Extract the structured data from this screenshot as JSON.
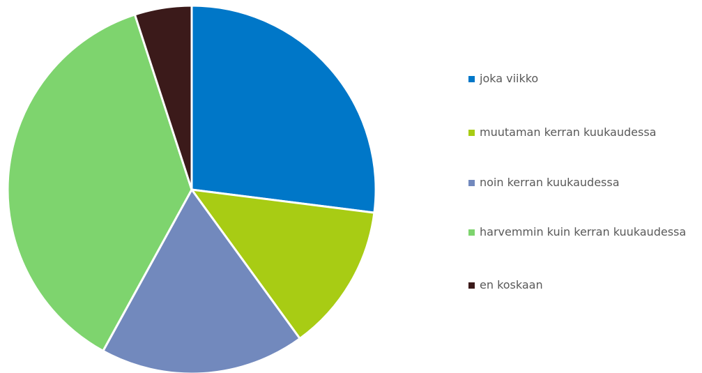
{
  "chart_data": {
    "type": "pie",
    "categories": [
      "joka viikko",
      "muutaman kerran kuukaudessa",
      "noin kerran kuukaudessa",
      "harvemmin kuin kerran kuukaudessa",
      "en koskaan"
    ],
    "values": [
      27,
      13,
      18,
      37,
      5
    ],
    "colors": [
      "#0077c8",
      "#a8cc14",
      "#7289bd",
      "#7ed46e",
      "#3b1a1a"
    ],
    "legend": "right"
  }
}
